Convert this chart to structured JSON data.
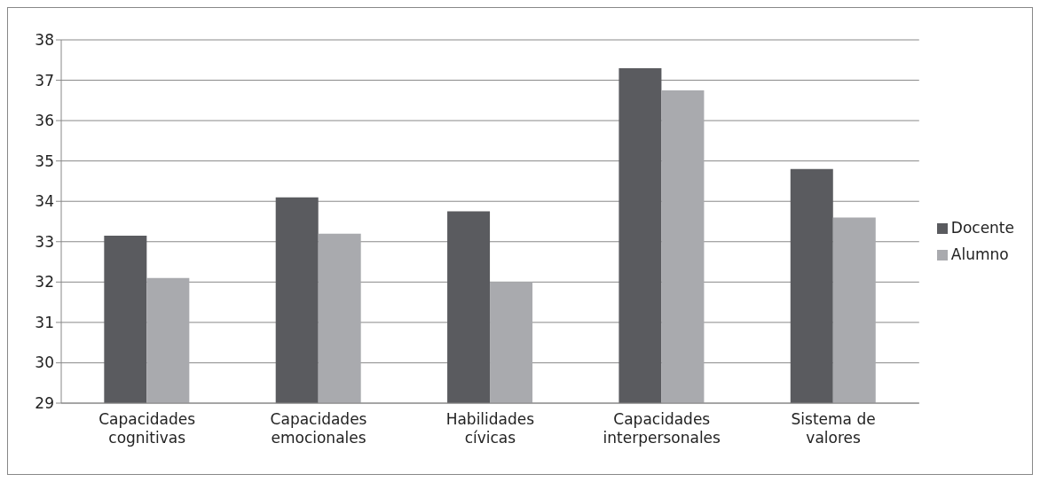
{
  "chart_data": {
    "type": "bar",
    "categories": [
      "Capacidades cognitivas",
      "Capacidades emocionales",
      "Habilidades cívicas",
      "Capacidades interpersonales",
      "Sistema de valores"
    ],
    "series": [
      {
        "name": "Docente",
        "color": "#5a5b5f",
        "values": [
          33.15,
          34.1,
          33.75,
          37.3,
          34.8
        ]
      },
      {
        "name": "Alumno",
        "color": "#a9aaae",
        "values": [
          32.1,
          33.2,
          32.0,
          36.75,
          33.6
        ]
      }
    ],
    "ylim": [
      29,
      38
    ],
    "yticks": [
      29,
      30,
      31,
      32,
      33,
      34,
      35,
      36,
      37,
      38
    ],
    "grid": "y",
    "legend": "right"
  }
}
